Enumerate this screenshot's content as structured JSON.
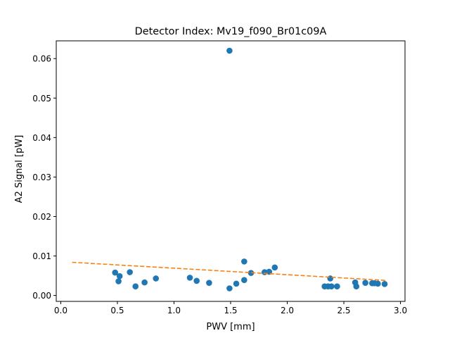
{
  "chart_data": {
    "type": "scatter",
    "title": "Detector Index: Mv19_f090_Br01c09A",
    "xlabel": "PWV [mm]",
    "ylabel": "A2 Signal [pW]",
    "xlim": [
      -0.04,
      3.04
    ],
    "ylim": [
      -0.0015,
      0.0645
    ],
    "xticks": [
      0.0,
      0.5,
      1.0,
      1.5,
      2.0,
      2.5,
      3.0
    ],
    "xtick_labels": [
      "0.0",
      "0.5",
      "1.0",
      "1.5",
      "2.0",
      "2.5",
      "3.0"
    ],
    "yticks": [
      0.0,
      0.01,
      0.02,
      0.03,
      0.04,
      0.05,
      0.06
    ],
    "ytick_labels": [
      "0.00",
      "0.01",
      "0.02",
      "0.03",
      "0.04",
      "0.05",
      "0.06"
    ],
    "grid": false,
    "series": [
      {
        "name": "data",
        "kind": "scatter",
        "color": "#1f77b4",
        "points": [
          [
            0.48,
            0.0058
          ],
          [
            0.51,
            0.0036
          ],
          [
            0.52,
            0.0049
          ],
          [
            0.61,
            0.0059
          ],
          [
            0.66,
            0.0023
          ],
          [
            0.74,
            0.0033
          ],
          [
            0.84,
            0.0043
          ],
          [
            1.14,
            0.0045
          ],
          [
            1.2,
            0.0037
          ],
          [
            1.31,
            0.0032
          ],
          [
            1.49,
            0.0018
          ],
          [
            1.49,
            0.062
          ],
          [
            1.55,
            0.003
          ],
          [
            1.62,
            0.0039
          ],
          [
            1.62,
            0.0086
          ],
          [
            1.68,
            0.0057
          ],
          [
            1.8,
            0.0059
          ],
          [
            1.84,
            0.006
          ],
          [
            1.89,
            0.0071
          ],
          [
            2.33,
            0.0023
          ],
          [
            2.36,
            0.0023
          ],
          [
            2.38,
            0.0043
          ],
          [
            2.39,
            0.0023
          ],
          [
            2.44,
            0.0023
          ],
          [
            2.6,
            0.0033
          ],
          [
            2.61,
            0.0023
          ],
          [
            2.69,
            0.0032
          ],
          [
            2.75,
            0.0031
          ],
          [
            2.77,
            0.0031
          ],
          [
            2.8,
            0.003
          ],
          [
            2.86,
            0.0029
          ]
        ]
      },
      {
        "name": "fit",
        "kind": "line",
        "style": "dashed",
        "color": "#ff7f0e",
        "points": [
          [
            0.1,
            0.0084
          ],
          [
            2.88,
            0.0038
          ]
        ]
      }
    ]
  }
}
